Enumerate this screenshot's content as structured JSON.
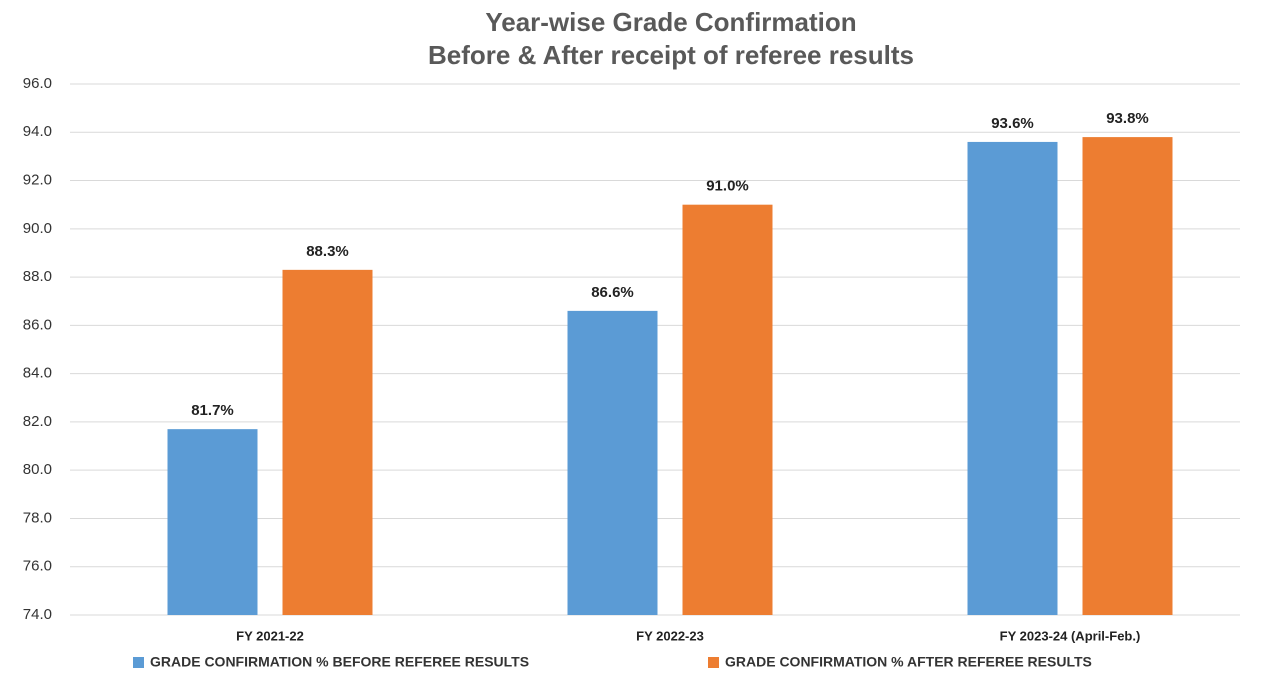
{
  "chart_data": {
    "type": "bar",
    "title": "Year-wise Grade Confirmation",
    "subtitle": "Before & After receipt of referee results",
    "categories": [
      "FY 2021-22",
      "FY 2022-23",
      "FY 2023-24 (April-Feb.)"
    ],
    "series": [
      {
        "name": "GRADE CONFIRMATION % BEFORE REFEREE RESULTS",
        "color": "#5b9bd5",
        "values": [
          81.7,
          86.6,
          93.6
        ],
        "value_labels": [
          "81.7%",
          "86.6%",
          "93.6%"
        ]
      },
      {
        "name": "GRADE CONFIRMATION % AFTER REFEREE RESULTS",
        "color": "#ed7d31",
        "values": [
          88.3,
          91.0,
          93.8
        ],
        "value_labels": [
          "88.3%",
          "91.0%",
          "93.8%"
        ]
      }
    ],
    "ylim": [
      74,
      96
    ],
    "yticks": [
      {
        "value": 74,
        "label": "74.0"
      },
      {
        "value": 76,
        "label": "76.0"
      },
      {
        "value": 78,
        "label": "78.0"
      },
      {
        "value": 80,
        "label": "80.0"
      },
      {
        "value": 82,
        "label": "82.0"
      },
      {
        "value": 84,
        "label": "84.0"
      },
      {
        "value": 86,
        "label": "86.0"
      },
      {
        "value": 88,
        "label": "88.0"
      },
      {
        "value": 90,
        "label": "90.0"
      },
      {
        "value": 92,
        "label": "92.0"
      },
      {
        "value": 94,
        "label": "94.0"
      },
      {
        "value": 96,
        "label": "96.0"
      }
    ],
    "grid": true,
    "legend": "bottom"
  }
}
